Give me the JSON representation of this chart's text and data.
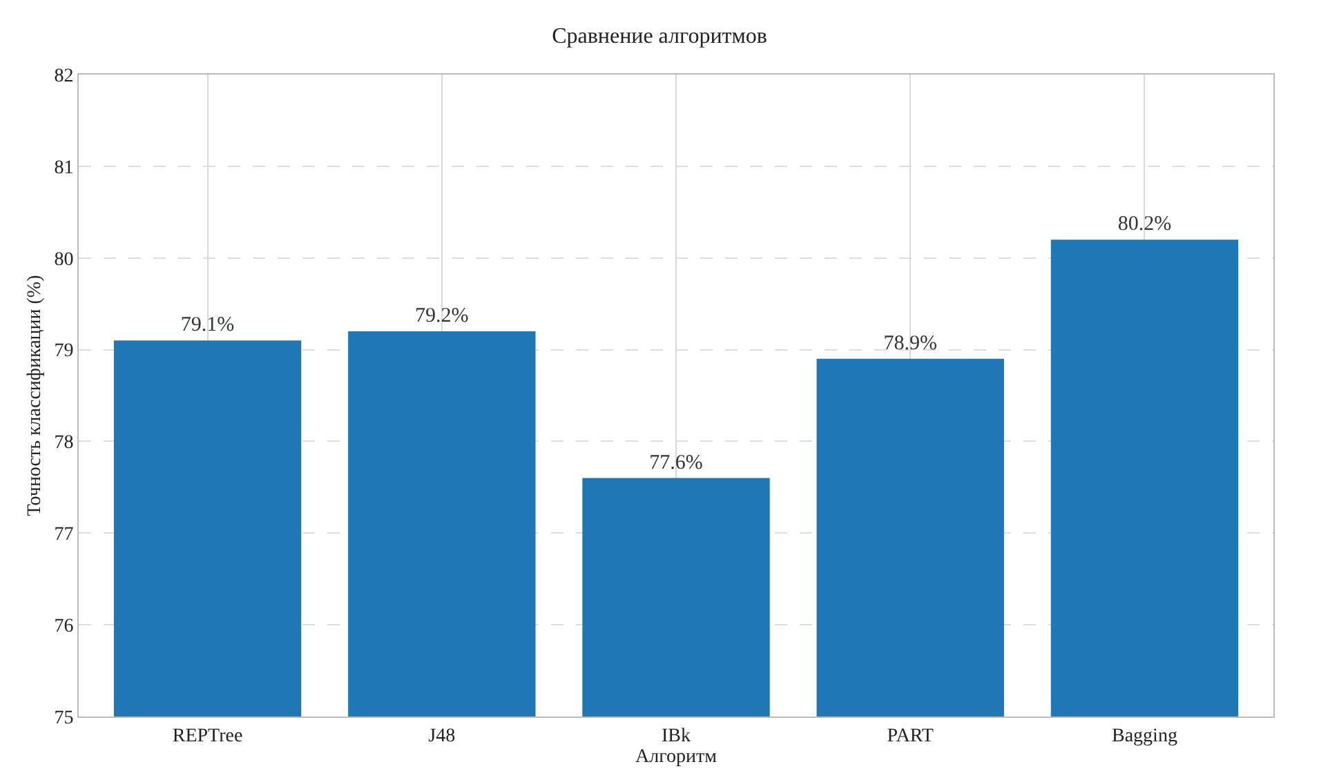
{
  "chart_data": {
    "type": "bar",
    "title": "Сравнение алгоритмов",
    "xlabel": "Алгоритм",
    "ylabel": "Точность классификации (%)",
    "categories": [
      "REPTree",
      "J48",
      "IBk",
      "PART",
      "Bagging"
    ],
    "values": [
      79.1,
      79.2,
      77.6,
      78.9,
      80.2
    ],
    "value_labels": [
      "79.1%",
      "79.2%",
      "77.6%",
      "78.9%",
      "80.2%"
    ],
    "color": "#1f77b4",
    "ylim": [
      75,
      82
    ],
    "yticks": [
      75,
      76,
      77,
      78,
      79,
      80,
      81,
      82
    ],
    "grid": true,
    "legend": false
  }
}
